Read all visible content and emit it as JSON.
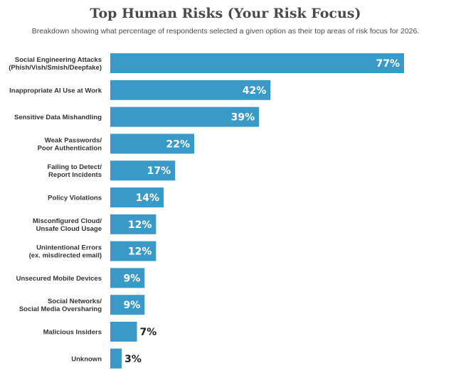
{
  "chart_data": {
    "type": "bar",
    "orientation": "horizontal",
    "title": "Top Human Risks (Your Risk Focus)",
    "subtitle": "Breakdown showing what percentage of respondents selected a given option as their top areas of risk focus for 2026.",
    "categories": [
      [
        "Social Engineering Attacks",
        "(Phish/Vish/Smish/Deepfake)"
      ],
      [
        "Inappropriate AI Use at Work"
      ],
      [
        "Sensitive Data Mishandling"
      ],
      [
        "Weak Passwords/",
        "Poor Authentication"
      ],
      [
        "Failing to Detect/",
        "Report Incidents"
      ],
      [
        "Policy Violations"
      ],
      [
        "Misconfigured Cloud/",
        "Unsafe Cloud Usage"
      ],
      [
        "Unintentional Errors",
        "(ex. misdirected email)"
      ],
      [
        "Unsecured Mobile Devices"
      ],
      [
        "Social Networks/",
        "Social Media Oversharing"
      ],
      [
        "Malicious Insiders"
      ],
      [
        "Unknown"
      ]
    ],
    "values": [
      77,
      42,
      39,
      22,
      17,
      14,
      12,
      12,
      9,
      9,
      7,
      3
    ],
    "value_labels": [
      "77%",
      "42%",
      "39%",
      "22%",
      "17%",
      "14%",
      "12%",
      "12%",
      "9%",
      "9%",
      "7%",
      "3%"
    ],
    "xlim": [
      0,
      77
    ],
    "grid": false,
    "legend": "none",
    "colors": {
      "bar": "#3a9ac7",
      "label_inside": "#ffffff",
      "label_outside": "#222222",
      "category_text": "#333333"
    }
  }
}
